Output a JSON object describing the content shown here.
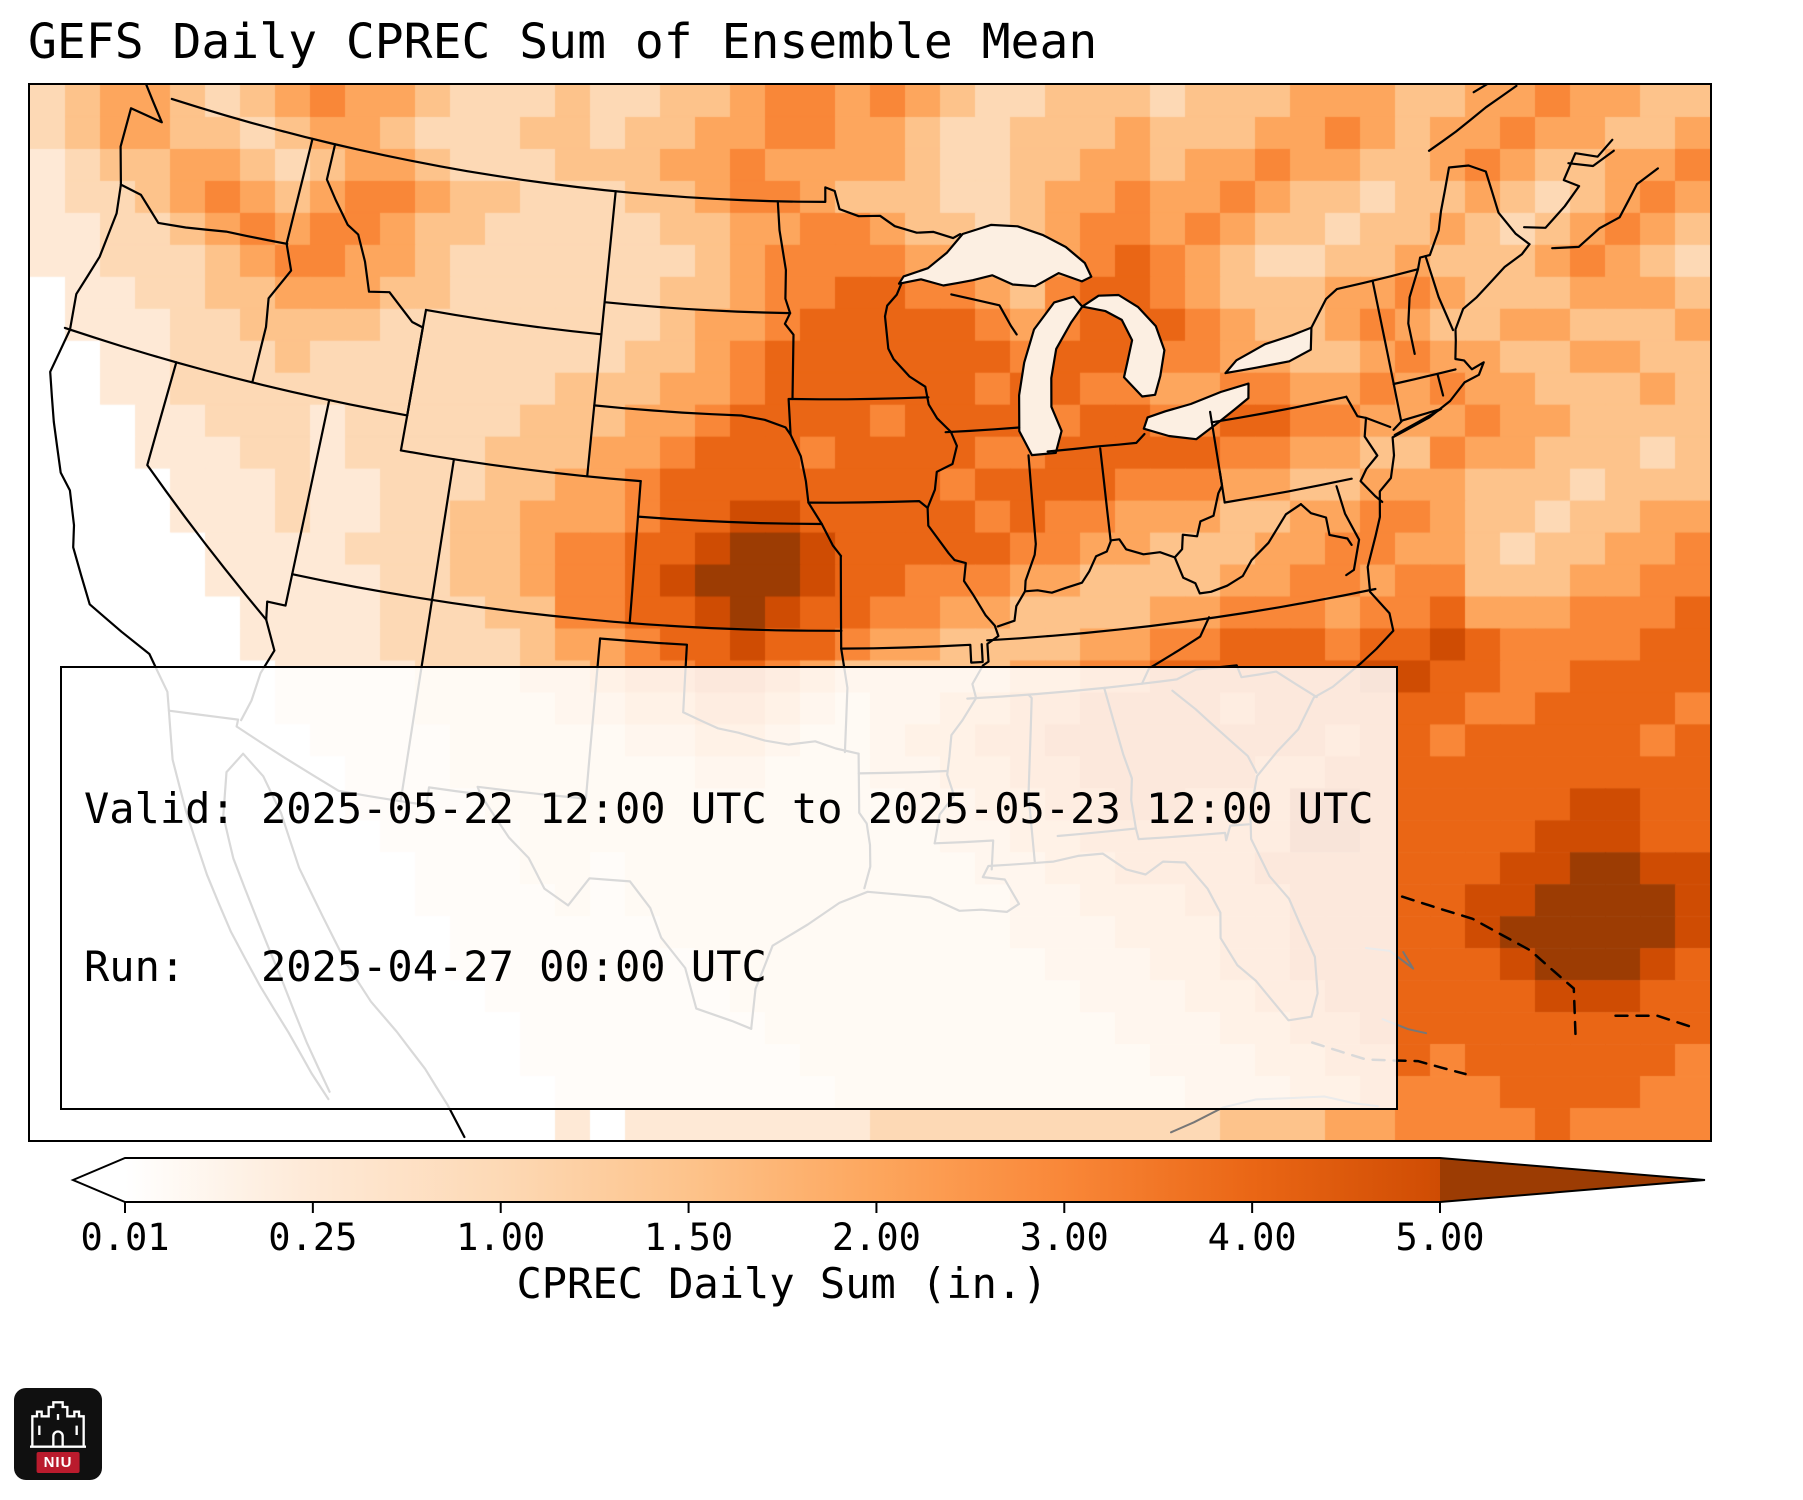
{
  "title": "GEFS Daily CPREC Sum of Ensemble Mean",
  "info_box": {
    "line1": "Valid: 2025-05-22 12:00 UTC to 2025-05-23 12:00 UTC",
    "line2": "Run:   2025-04-27 00:00 UTC"
  },
  "colorbar": {
    "label": "CPREC Daily Sum (in.)",
    "tick_labels": [
      "0.01",
      "0.25",
      "1.00",
      "1.50",
      "2.00",
      "3.00",
      "4.00",
      "5.00"
    ],
    "levels": [
      0.01,
      0.25,
      1.0,
      1.5,
      2.0,
      3.0,
      4.0,
      5.0
    ],
    "extend": "both"
  },
  "logo": {
    "text": "NIU"
  },
  "chart_data": {
    "type": "heatmap",
    "title": "GEFS Daily CPREC Sum of Ensemble Mean",
    "units": "in.",
    "colorbar_label": "CPREC Daily Sum (in.)",
    "levels": [
      0.01,
      0.25,
      1.0,
      1.5,
      2.0,
      3.0,
      4.0,
      5.0
    ],
    "palette": [
      "#ffffff",
      "#fee9d6",
      "#fdd9b5",
      "#fdc38b",
      "#fda65d",
      "#f98738",
      "#ea6615",
      "#cf4c03",
      "#9c3c03"
    ],
    "bin_ranges": [
      "<0.01",
      "0.01-0.25",
      "0.25-1.00",
      "1.00-1.50",
      "1.50-2.00",
      "2.00-3.00",
      "3.00-4.00",
      "4.00-5.00",
      ">5.00"
    ],
    "grid_note": "Approximate precipitation field over CONUS read from the plot. Each character is a color-bin index 0-8 into palette/bin_ranges; rows run north to south, columns west to east across the map frame.",
    "grid": [
      "234432345443222322334554543223332333444334454433",
      "234433234432223323344554432233343334454344544334",
      "123344323443222333445444432233443445443345433445",
      "122345434554332223345543332234454454332334323454",
      "112234545543322222334455433234554543323343234543",
      "112223455443222222234555544334565432233433345432",
      "011223344433222222334556655435665433344543334443",
      "011122333322222222344566666545666543345433443334",
      "001122232222222223345666666656665544334544334433",
      "001122222222222333445666666566554455445454433343",
      "000112221222223334456666566665665566554445443333",
      "000111221222233344566656666556666655443354433323",
      "000011121122233445666666665666655544334443332333",
      "000011121122334445667766666565544433445543323344",
      "000001111222334556678876666655443334455443233445",
      "000001111122334556788876655544333344554553334455",
      "000000111122233556678766554433334455545564445556",
      "000000111122223445667665443333445566656676555566",
      "000000011112223345566543333344556666667766556666",
      "000000011112222334455432334455666656666665566665",
      "000000001111222223344322344556666666656656666656",
      "000000000111222222233222334455666665566666666666",
      "000000000111122222222222233445566555776666667766",
      "000000000011112222222222223344555555776666677766",
      "000000000001112212222222222334455556666666778877",
      "000000000001111212222222222233444555666667788887",
      "000000000000111111222222222233344455666667888887",
      "000000000000111111122222222223334455666666788876",
      "000000000000011111112222222222333445566666677766",
      "000000000000001111111222222222233344556666666666",
      "000000000000001111111122222222223334455656666665",
      "000000000000000111111112222222222333445555666655",
      "000000000000000101111111222222222233344555565555"
    ]
  }
}
